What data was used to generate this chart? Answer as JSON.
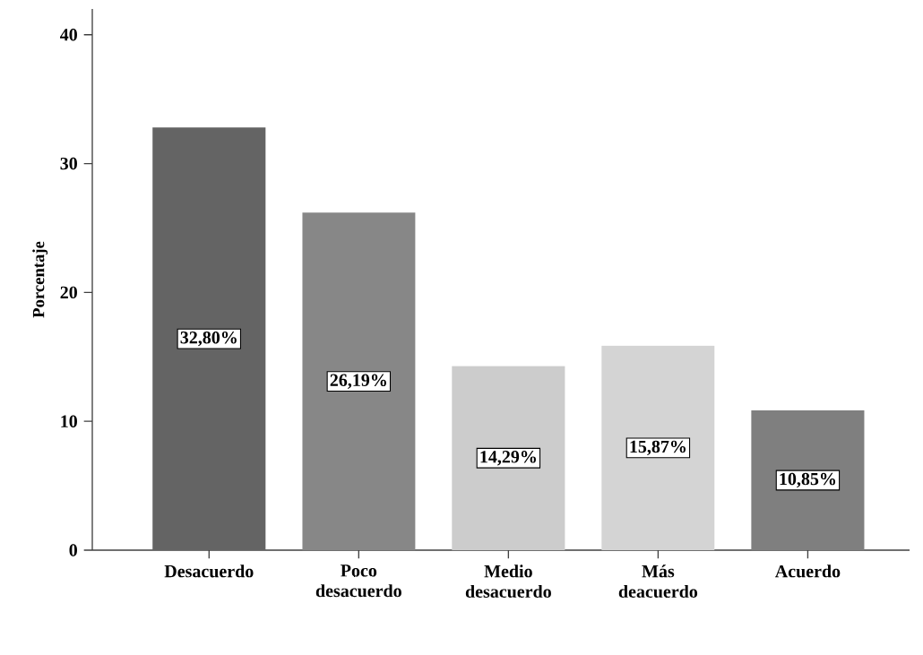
{
  "chart_data": {
    "type": "bar",
    "ylabel": "Porcentaje",
    "categories": [
      "Desacuerdo",
      "Poco desacuerdo",
      "Medio desacuerdo",
      "Más deacuerdo",
      "Acuerdo"
    ],
    "values": [
      32.8,
      26.19,
      14.29,
      15.87,
      10.85
    ],
    "value_labels": [
      "32,80%",
      "26,19%",
      "14,29%",
      "15,87%",
      "10,85%"
    ],
    "colors": [
      "#646464",
      "#878787",
      "#cccccc",
      "#d4d4d4",
      "#7f7f7f"
    ],
    "ylim": [
      0,
      42
    ],
    "yticks": [
      0,
      10,
      20,
      30,
      40
    ]
  }
}
